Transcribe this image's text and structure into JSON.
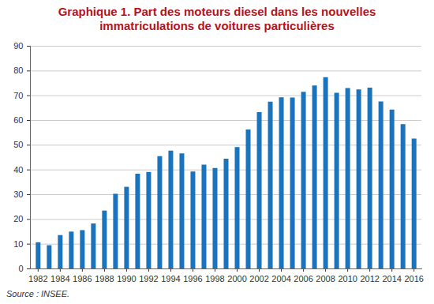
{
  "chart_data": {
    "type": "bar",
    "title": "Graphique 1. Part des moteurs diesel dans les nouvelles immatriculations de voitures particulières",
    "source": "Source : INSEE.",
    "x": [
      1982,
      1983,
      1984,
      1985,
      1986,
      1987,
      1988,
      1989,
      1990,
      1991,
      1992,
      1993,
      1994,
      1995,
      1996,
      1997,
      1998,
      1999,
      2000,
      2001,
      2002,
      2003,
      2004,
      2005,
      2006,
      2007,
      2008,
      2009,
      2010,
      2011,
      2012,
      2013,
      2014,
      2015,
      2016
    ],
    "values": [
      10.6,
      9.4,
      13.5,
      14.9,
      15.5,
      18.2,
      23.4,
      30.2,
      33.0,
      38.3,
      39.0,
      45.4,
      47.6,
      46.5,
      39.2,
      42.0,
      40.6,
      44.4,
      49.1,
      56.2,
      63.2,
      67.4,
      69.2,
      69.1,
      71.4,
      74.0,
      77.3,
      71.0,
      72.9,
      72.4,
      73.1,
      67.5,
      64.2,
      58.3,
      52.5
    ],
    "color": "#1b73bb",
    "xlim": [
      1981.3,
      2016.7
    ],
    "xticks": [
      1982,
      1984,
      1986,
      1988,
      1990,
      1992,
      1994,
      1996,
      1998,
      2000,
      2002,
      2004,
      2006,
      2008,
      2010,
      2012,
      2014,
      2016
    ],
    "ylim": [
      0,
      90
    ],
    "yticks": [
      0,
      10,
      20,
      30,
      40,
      50,
      60,
      70,
      80,
      90
    ],
    "grid": true
  }
}
